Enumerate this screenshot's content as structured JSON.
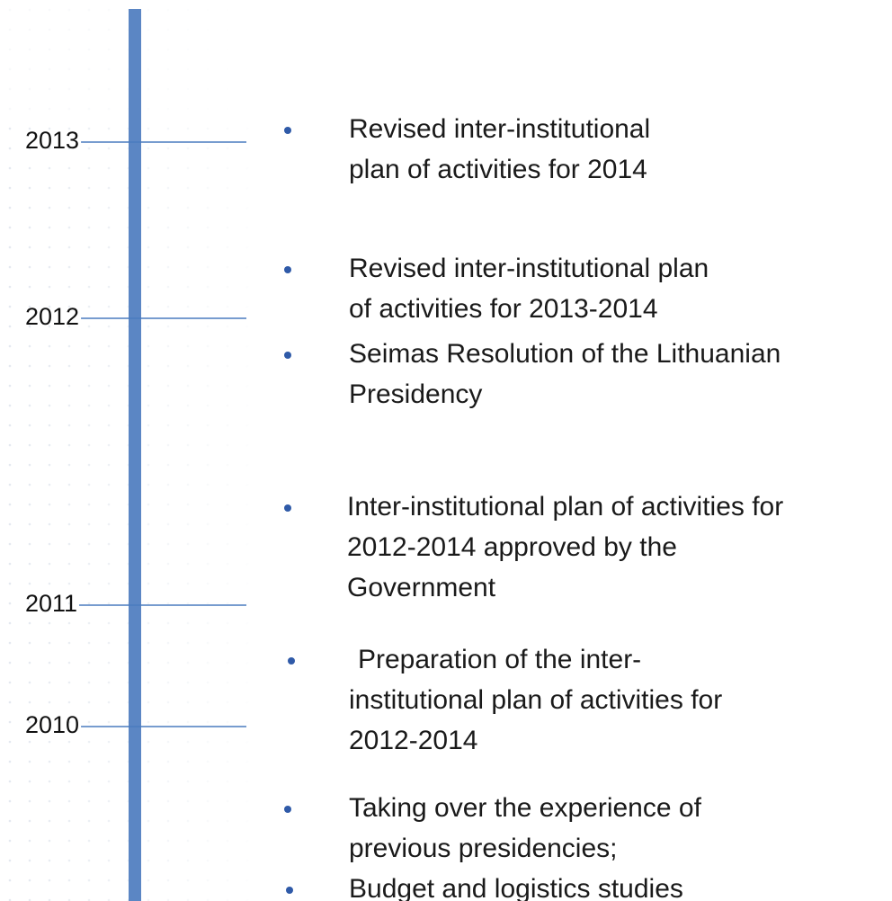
{
  "timeline": {
    "years": [
      "2013",
      "2012",
      "2011",
      "2010"
    ],
    "items": [
      {
        "lines": [
          "Revised inter-institutional",
          "plan of activities for 2014"
        ]
      },
      {
        "lines": [
          "Revised inter-institutional plan",
          "of activities for 2013-2014"
        ]
      },
      {
        "lines": [
          "Seimas Resolution of the Lithuanian",
          "Presidency"
        ]
      },
      {
        "lines": [
          "Inter-institutional plan of activities for",
          "2012-2014 approved by the",
          "Government"
        ]
      },
      {
        "lines": [
          "Preparation of the inter-",
          "institutional plan of activities for",
          "2012-2014"
        ]
      },
      {
        "lines": [
          "Taking over the experience of",
          "previous presidencies;"
        ]
      },
      {
        "lines": [
          "Budget and logistics studies"
        ]
      }
    ]
  }
}
